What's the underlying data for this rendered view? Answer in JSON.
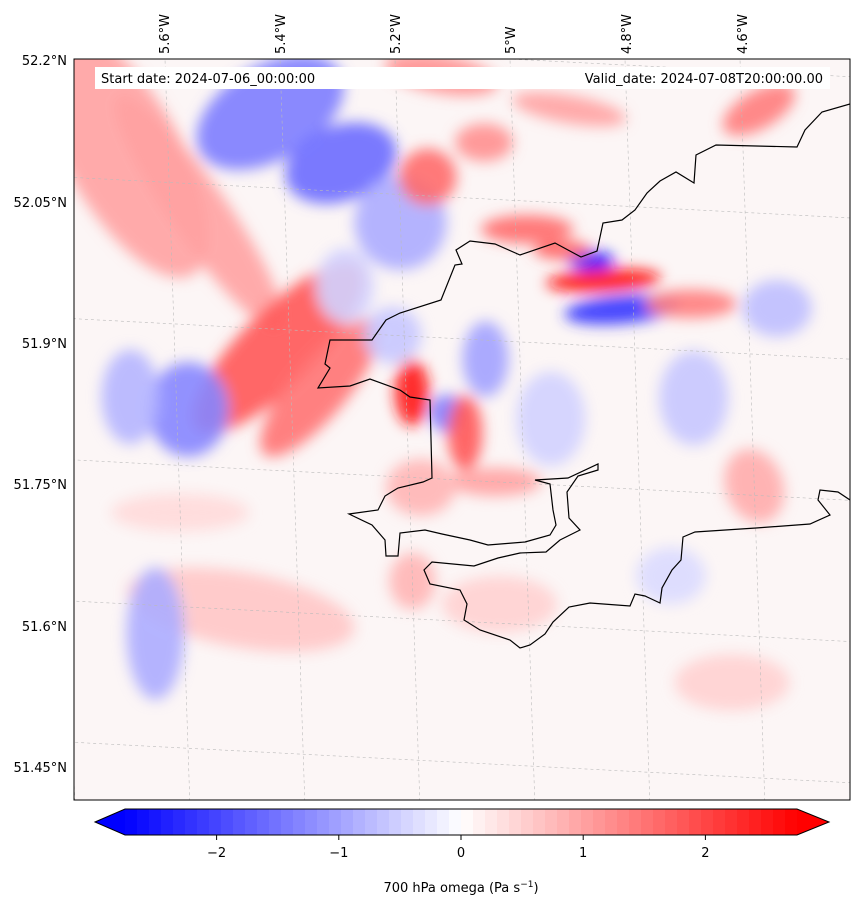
{
  "map": {
    "start_label": "Start date: 2024-07-06_00:00:00",
    "valid_label": "Valid_date: 2024-07-08T20:00:00.00",
    "lon_labels": [
      "5.6°W",
      "5.4°W",
      "5.2°W",
      "5°W",
      "4.8°W",
      "4.6°W"
    ],
    "lat_labels": [
      "52.2°N",
      "52.05°N",
      "51.9°N",
      "51.75°N",
      "51.6°N",
      "51.45°N"
    ],
    "field": "700 hPa omega",
    "units": "Pa s",
    "units_exponent": "−1",
    "colors": {
      "negative": "#0000ff",
      "zero": "#ffffff",
      "positive": "#ff0000",
      "coast": "#000000",
      "grid": "#bbbbbb"
    }
  },
  "colorbar": {
    "ticks": [
      -2,
      -1,
      0,
      1,
      2
    ],
    "tick_labels": [
      "−2",
      "−1",
      "0",
      "1",
      "2"
    ],
    "vmin": -2.75,
    "vmax": 2.75,
    "levels": 56
  },
  "blobs": [
    {
      "lon": -5.42,
      "lat": 52.13,
      "rx": 0.14,
      "ry": 0.05,
      "rot": -30,
      "v": -1.4
    },
    {
      "lon": -5.3,
      "lat": 52.08,
      "rx": 0.1,
      "ry": 0.04,
      "rot": -20,
      "v": -1.6
    },
    {
      "lon": -5.2,
      "lat": 52.02,
      "rx": 0.08,
      "ry": 0.05,
      "rot": 0,
      "v": -0.9
    },
    {
      "lon": -5.68,
      "lat": 52.08,
      "rx": 0.1,
      "ry": 0.15,
      "rot": -30,
      "v": 1.0
    },
    {
      "lon": -5.55,
      "lat": 52.02,
      "rx": 0.05,
      "ry": 0.15,
      "rot": -35,
      "v": 1.0
    },
    {
      "lon": -5.42,
      "lat": 51.88,
      "rx": 0.2,
      "ry": 0.04,
      "rot": -45,
      "v": 1.8
    },
    {
      "lon": -5.35,
      "lat": 51.84,
      "rx": 0.15,
      "ry": 0.03,
      "rot": -50,
      "v": 1.5
    },
    {
      "lon": -5.58,
      "lat": 51.81,
      "rx": 0.07,
      "ry": 0.05,
      "rot": 0,
      "v": -1.3
    },
    {
      "lon": -5.68,
      "lat": 51.82,
      "rx": 0.05,
      "ry": 0.05,
      "rot": 0,
      "v": -0.8
    },
    {
      "lon": -5.19,
      "lat": 51.84,
      "rx": 0.03,
      "ry": 0.035,
      "rot": 0,
      "v": 2.5
    },
    {
      "lon": -5.13,
      "lat": 51.82,
      "rx": 0.03,
      "ry": 0.02,
      "rot": 0,
      "v": -1.4
    },
    {
      "lon": -5.1,
      "lat": 51.8,
      "rx": 0.03,
      "ry": 0.04,
      "rot": 0,
      "v": 1.8
    },
    {
      "lon": -4.85,
      "lat": 51.97,
      "rx": 0.1,
      "ry": 0.012,
      "rot": -3,
      "v": 2.6
    },
    {
      "lon": -4.87,
      "lat": 51.99,
      "rx": 0.04,
      "ry": 0.01,
      "rot": 0,
      "v": -2.6
    },
    {
      "lon": -4.82,
      "lat": 51.94,
      "rx": 0.1,
      "ry": 0.015,
      "rot": -5,
      "v": -2.2
    },
    {
      "lon": -4.7,
      "lat": 51.95,
      "rx": 0.08,
      "ry": 0.015,
      "rot": 0,
      "v": 1.4
    },
    {
      "lon": -4.98,
      "lat": 52.02,
      "rx": 0.08,
      "ry": 0.015,
      "rot": 0,
      "v": 1.6
    },
    {
      "lon": -4.92,
      "lat": 52.0,
      "rx": 0.05,
      "ry": 0.01,
      "rot": 0,
      "v": 1.7
    },
    {
      "lon": -5.15,
      "lat": 52.07,
      "rx": 0.05,
      "ry": 0.03,
      "rot": 0,
      "v": 1.6
    },
    {
      "lon": -5.05,
      "lat": 52.11,
      "rx": 0.05,
      "ry": 0.02,
      "rot": 0,
      "v": 1.2
    },
    {
      "lon": -5.12,
      "lat": 52.18,
      "rx": 0.1,
      "ry": 0.02,
      "rot": 10,
      "v": 1.2
    },
    {
      "lon": -4.9,
      "lat": 52.15,
      "rx": 0.1,
      "ry": 0.015,
      "rot": 10,
      "v": 1.0
    },
    {
      "lon": -4.57,
      "lat": 52.16,
      "rx": 0.07,
      "ry": 0.02,
      "rot": -30,
      "v": 1.4
    },
    {
      "lon": -4.6,
      "lat": 51.76,
      "rx": 0.05,
      "ry": 0.04,
      "rot": -20,
      "v": 0.9
    },
    {
      "lon": -5.05,
      "lat": 51.75,
      "rx": 0.08,
      "ry": 0.015,
      "rot": 0,
      "v": 1.0
    },
    {
      "lon": -5.18,
      "lat": 51.74,
      "rx": 0.06,
      "ry": 0.03,
      "rot": 0,
      "v": 0.8
    },
    {
      "lon": -5.06,
      "lat": 51.88,
      "rx": 0.04,
      "ry": 0.04,
      "rot": 0,
      "v": -1.0
    },
    {
      "lon": -5.22,
      "lat": 51.9,
      "rx": 0.05,
      "ry": 0.03,
      "rot": 0,
      "v": -0.6
    },
    {
      "lon": -4.95,
      "lat": 51.82,
      "rx": 0.06,
      "ry": 0.05,
      "rot": 0,
      "v": -0.5
    },
    {
      "lon": -4.7,
      "lat": 51.85,
      "rx": 0.06,
      "ry": 0.05,
      "rot": 0,
      "v": -0.6
    },
    {
      "lon": -4.55,
      "lat": 51.95,
      "rx": 0.06,
      "ry": 0.03,
      "rot": 0,
      "v": -0.7
    },
    {
      "lon": -5.5,
      "lat": 51.6,
      "rx": 0.2,
      "ry": 0.04,
      "rot": 10,
      "v": 0.6
    },
    {
      "lon": -5.65,
      "lat": 51.57,
      "rx": 0.05,
      "ry": 0.07,
      "rot": 0,
      "v": -0.9
    },
    {
      "lon": -5.05,
      "lat": 51.62,
      "rx": 0.1,
      "ry": 0.03,
      "rot": 0,
      "v": 0.5
    },
    {
      "lon": -5.2,
      "lat": 51.64,
      "rx": 0.04,
      "ry": 0.03,
      "rot": 0,
      "v": 0.8
    },
    {
      "lon": -4.65,
      "lat": 51.55,
      "rx": 0.1,
      "ry": 0.03,
      "rot": 0,
      "v": 0.5
    },
    {
      "lon": -4.75,
      "lat": 51.66,
      "rx": 0.06,
      "ry": 0.03,
      "rot": 0,
      "v": -0.4
    },
    {
      "lon": -5.6,
      "lat": 51.7,
      "rx": 0.12,
      "ry": 0.02,
      "rot": 0,
      "v": 0.4
    },
    {
      "lon": -5.3,
      "lat": 51.95,
      "rx": 0.05,
      "ry": 0.04,
      "rot": 0,
      "v": -0.5
    }
  ]
}
